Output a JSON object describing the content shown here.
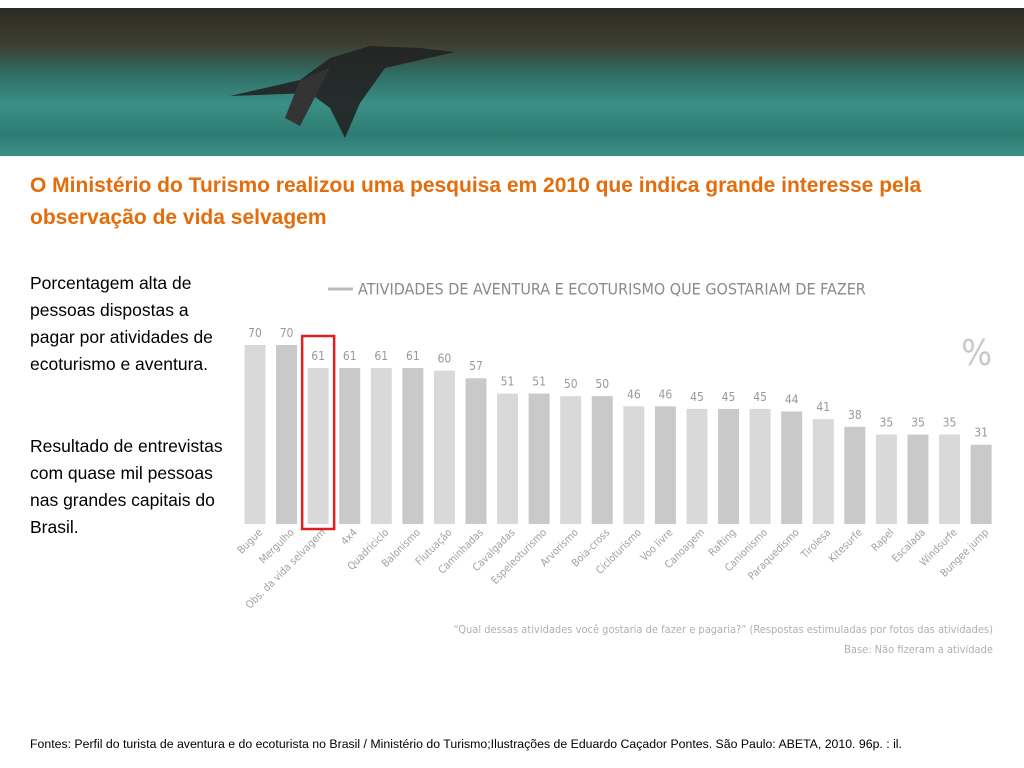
{
  "header": {
    "title": "O Ministério do Turismo realizou uma pesquisa em 2010 que indica grande interesse pela observação de vida selvagem"
  },
  "side_text": [
    "Porcentagem alta de pessoas dispostas a pagar por atividades de ecoturismo e aventura.",
    "Resultado de entrevistas com quase mil pessoas nas grandes capitais do Brasil."
  ],
  "chart_data": {
    "type": "bar",
    "title": "ATIVIDADES DE AVENTURA E ECOTURISMO QUE GOSTARIAM DE FAZER",
    "unit": "%",
    "categories": [
      "Bugue",
      "Mergulho",
      "Obs. da vida selvagem",
      "4x4",
      "Quadriciclo",
      "Balonismo",
      "Flutuação",
      "Caminhadas",
      "Cavalgadas",
      "Espeleoturismo",
      "Arvorismo",
      "Boia-cross",
      "Cicloturismo",
      "Voo livre",
      "Canoagem",
      "Rafting",
      "Canionismo",
      "Paraquedismo",
      "Tirolesa",
      "Kitesurfe",
      "Rapel",
      "Escalada",
      "Windsurfe",
      "Bungee jump"
    ],
    "values": [
      70,
      70,
      61,
      61,
      61,
      61,
      60,
      57,
      51,
      51,
      50,
      50,
      46,
      46,
      45,
      45,
      45,
      44,
      41,
      38,
      35,
      35,
      35,
      31
    ],
    "colors": [
      "#d9d9d9",
      "#c9c9c9"
    ],
    "highlight_color": "#e02020",
    "notes": [
      "“Qual dessas atividades você gostaria de fazer e pagaria?” (Respostas estimuladas por fotos das atividades)",
      "Base: Não fizeram a atividade"
    ]
  },
  "footer": "Fontes: Perfil do turista de aventura e do ecoturista no Brasil / Ministério do Turismo;Ilustrações de Eduardo Caçador Pontes. São Paulo: ABETA, 2010. 96p. : il."
}
